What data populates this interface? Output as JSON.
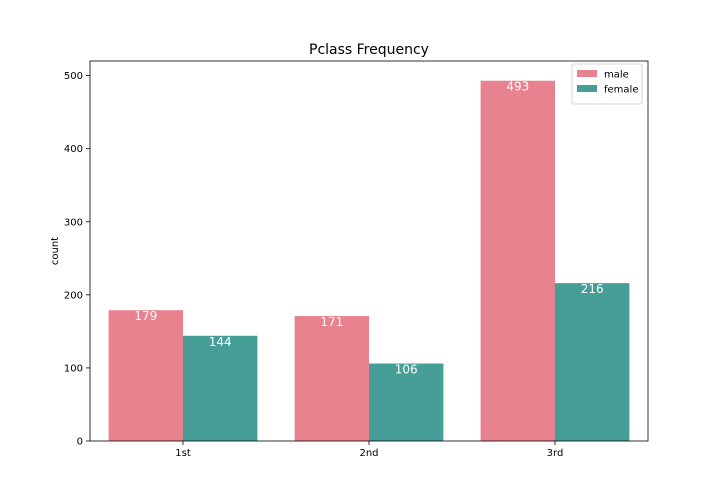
{
  "chart_data": {
    "type": "bar",
    "title": "Pclass Frequency",
    "xlabel": "",
    "ylabel": "count",
    "categories": [
      "1st",
      "2nd",
      "3rd"
    ],
    "series": [
      {
        "name": "male",
        "values": [
          179,
          171,
          493
        ],
        "color": "#e8828f"
      },
      {
        "name": "female",
        "values": [
          144,
          106,
          216
        ],
        "color": "#469e97"
      }
    ],
    "ylim": [
      0,
      520
    ],
    "yticks": [
      0,
      100,
      200,
      300,
      400,
      500
    ],
    "grid": false,
    "legend_position": "top-right",
    "bar_labels": true
  }
}
